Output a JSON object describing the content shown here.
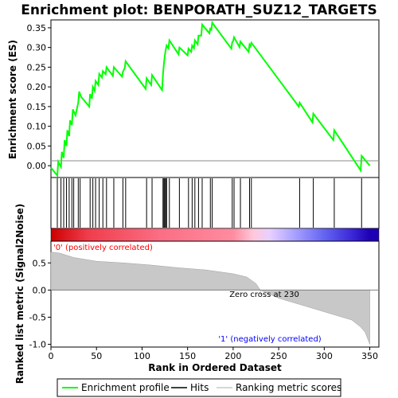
{
  "chart_data": {
    "type": "line",
    "title": "Enrichment plot: BENPORATH_SUZ12_TARGETS",
    "xlabel": "Rank in Ordered Dataset",
    "x_range": [
      0,
      360
    ],
    "x_ticks": [
      "0",
      "50",
      "100",
      "150",
      "200",
      "250",
      "300",
      "350"
    ],
    "top_panel": {
      "ylabel": "Enrichment score (ES)",
      "ylim": [
        -0.03,
        0.37
      ],
      "y_ticks": [
        "0.00",
        "0.05",
        "0.10",
        "0.15",
        "0.20",
        "0.25",
        "0.30",
        "0.35"
      ],
      "series": [
        {
          "name": "Enrichment profile",
          "color": "#00ff00",
          "x": [
            0,
            7,
            8,
            11,
            12,
            14,
            15,
            17,
            18,
            20,
            21,
            23,
            24,
            27,
            30,
            31,
            33,
            42,
            43,
            45,
            46,
            48,
            49,
            52,
            53,
            56,
            57,
            60,
            61,
            68,
            69,
            78,
            79,
            81,
            82,
            104,
            105,
            110,
            111,
            122,
            123,
            124,
            125,
            126,
            127,
            129,
            130,
            140,
            141,
            150,
            151,
            154,
            155,
            157,
            158,
            161,
            162,
            165,
            166,
            174,
            175,
            176,
            177,
            198,
            199,
            200,
            201,
            207,
            208,
            217,
            218,
            219,
            220,
            272,
            273,
            287,
            288,
            310,
            311,
            340,
            341,
            350
          ],
          "y": [
            -0.005,
            -0.025,
            0.01,
            -0.003,
            0.035,
            0.02,
            0.065,
            0.05,
            0.09,
            0.075,
            0.115,
            0.103,
            0.143,
            0.128,
            0.16,
            0.188,
            0.175,
            0.15,
            0.182,
            0.17,
            0.2,
            0.19,
            0.215,
            0.205,
            0.233,
            0.224,
            0.24,
            0.232,
            0.25,
            0.228,
            0.25,
            0.226,
            0.238,
            0.248,
            0.265,
            0.195,
            0.222,
            0.205,
            0.23,
            0.192,
            0.232,
            0.258,
            0.28,
            0.294,
            0.305,
            0.298,
            0.318,
            0.283,
            0.3,
            0.28,
            0.297,
            0.289,
            0.305,
            0.298,
            0.318,
            0.308,
            0.33,
            0.33,
            0.358,
            0.336,
            0.35,
            0.343,
            0.363,
            0.297,
            0.313,
            0.316,
            0.326,
            0.301,
            0.315,
            0.289,
            0.307,
            0.303,
            0.312,
            0.15,
            0.16,
            0.11,
            0.132,
            0.065,
            0.09,
            -0.012,
            0.025,
            0.0
          ]
        }
      ]
    },
    "hits": [
      7,
      11,
      14,
      17,
      20,
      23,
      25,
      30,
      32,
      43,
      46,
      49,
      53,
      57,
      61,
      69,
      79,
      82,
      105,
      111,
      123,
      124,
      125,
      126,
      127,
      130,
      141,
      151,
      155,
      158,
      162,
      166,
      175,
      177,
      199,
      201,
      208,
      218,
      220,
      273,
      288,
      311,
      341
    ],
    "color_bar": {
      "stops": [
        {
          "rank": 0,
          "color": "#cc0000"
        },
        {
          "rank": 40,
          "color": "#f03c4c"
        },
        {
          "rank": 120,
          "color": "#fb6e84"
        },
        {
          "rank": 200,
          "color": "#ff8ca0"
        },
        {
          "rank": 222,
          "color": "#ffc8dc"
        },
        {
          "rank": 240,
          "color": "#e8d0ff"
        },
        {
          "rank": 268,
          "color": "#a8a0ff"
        },
        {
          "rank": 300,
          "color": "#6464f2"
        },
        {
          "rank": 330,
          "color": "#3c28d8"
        },
        {
          "rank": 350,
          "color": "#1e00b4"
        }
      ]
    },
    "bottom_panel": {
      "ylabel": "Ranked list metric (Signal2Noise)",
      "ylim": [
        -1.05,
        0.9
      ],
      "y_ticks": [
        "-1.0",
        "-0.5",
        "0.0",
        "0.5"
      ],
      "metric_curve": {
        "x": [
          0,
          10,
          25,
          50,
          80,
          110,
          140,
          170,
          200,
          215,
          225,
          230,
          250,
          280,
          310,
          330,
          340,
          345,
          350
        ],
        "y": [
          0.7,
          0.68,
          0.6,
          0.53,
          0.5,
          0.46,
          0.41,
          0.37,
          0.3,
          0.24,
          0.12,
          0.0,
          -0.15,
          -0.3,
          -0.45,
          -0.55,
          -0.68,
          -0.78,
          -1.0
        ]
      },
      "zero_cross": 230,
      "zero_cross_label": "Zero cross at 230",
      "pos_label": "'0' (positively correlated)",
      "neg_label": "'1' (negatively correlated)",
      "pos_color": "#ff0000",
      "neg_color": "#0000ff"
    },
    "legend": {
      "entries": [
        "Enrichment profile",
        "Hits",
        "Ranking metric scores"
      ],
      "colors": [
        "#00ff00",
        "#000000",
        "#c8c8c8"
      ]
    }
  }
}
